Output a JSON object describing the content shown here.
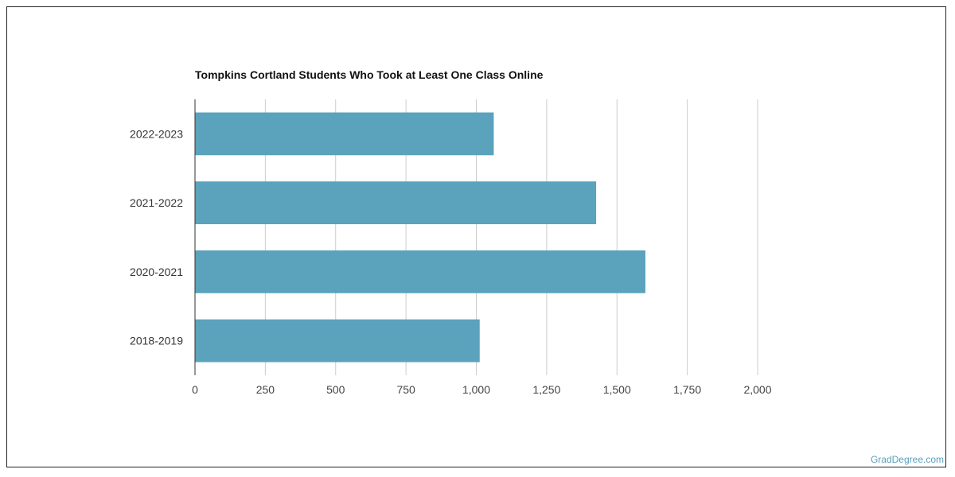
{
  "chart_data": {
    "type": "bar",
    "orientation": "horizontal",
    "title": "Tompkins Cortland Students Who Took at Least One Class Online",
    "categories": [
      "2022-2023",
      "2021-2022",
      "2020-2021",
      "2018-2019"
    ],
    "values": [
      1062,
      1426,
      1601,
      1012
    ],
    "xlabel": "",
    "ylabel": "",
    "xlim": [
      0,
      2000
    ],
    "x_ticks": [
      0,
      250,
      500,
      750,
      1000,
      1250,
      1500,
      1750,
      2000
    ],
    "x_tick_labels": [
      "0",
      "250",
      "500",
      "750",
      "1,000",
      "1,250",
      "1,500",
      "1,750",
      "2,000"
    ],
    "grid": "vertical",
    "bar_color": "#5ba2bd"
  },
  "watermark": "GradDegree.com"
}
